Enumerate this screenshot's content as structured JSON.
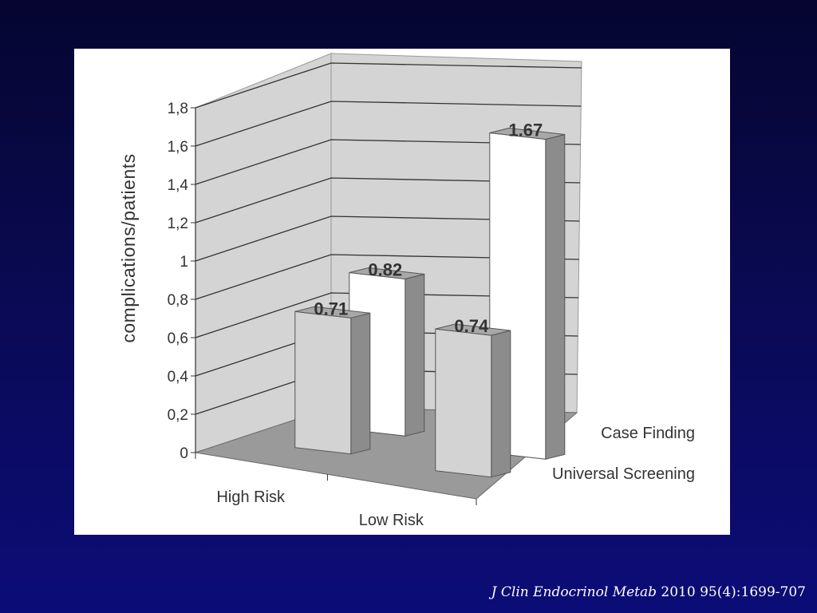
{
  "chart_data": {
    "type": "bar",
    "title": "",
    "ylabel": "complications/patients",
    "xlabel": "",
    "ylim": [
      0,
      1.8
    ],
    "yticks": [
      "0",
      "0,2",
      "0,4",
      "0,6",
      "0,8",
      "1",
      "1,2",
      "1,4",
      "1,6",
      "1,8"
    ],
    "categories": [
      "High Risk",
      "Low Risk"
    ],
    "depth_categories": [
      "Case Finding",
      "Universal Screening"
    ],
    "series": [
      {
        "name": "Universal Screening",
        "values": [
          0.71,
          0.74
        ],
        "labels": [
          "0.71",
          "0.74"
        ],
        "color": "#d3d3d3"
      },
      {
        "name": "Case Finding",
        "values": [
          0.82,
          1.67
        ],
        "labels": [
          "0.82",
          "1.67"
        ],
        "color": "#ffffff"
      }
    ],
    "grid": true
  },
  "citation": {
    "journal": "J Clin Endocrinol Metab",
    "reference": "2010 95(4):1699-707"
  }
}
